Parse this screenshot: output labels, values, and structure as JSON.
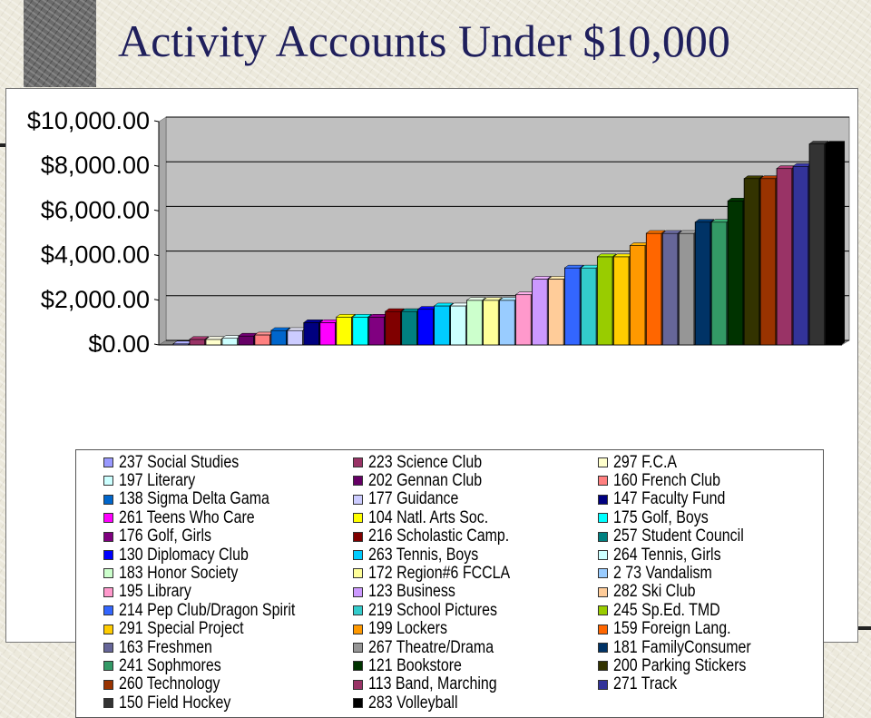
{
  "slide": {
    "title": "Activity Accounts Under $10,000"
  },
  "chart_data": {
    "type": "bar",
    "title": "",
    "xlabel": "",
    "ylabel": "",
    "ylim": [
      0,
      10000
    ],
    "yticks": [
      "$0.00",
      "$2,000.00",
      "$4,000.00",
      "$6,000.00",
      "$8,000.00",
      "$10,000.00"
    ],
    "ytick_values": [
      0,
      2000,
      4000,
      6000,
      8000,
      10000
    ],
    "grid": true,
    "legend_position": "bottom",
    "plot_background": "#c0c0c0",
    "categories": [
      "237 Social Studies",
      "223 Science Club",
      "297 F.C.A",
      "197 Literary",
      "202 Gennan Club",
      "160 French Club",
      "138 Sigma Delta Gama",
      "177 Guidance",
      "147 Faculty Fund",
      "261 Teens Who Care",
      "104 Natl. Arts Soc.",
      "175 Golf, Boys",
      "176 Golf, Girls",
      "216 Scholastic Camp.",
      "257 Student Council",
      "130 Diplomacy Club",
      "263 Tennis, Boys",
      "264 Tennis, Girls",
      "183 Honor Society",
      "172 Region#6 FCCLA",
      "2 73 Vandalism",
      "195 Library",
      "123 Business",
      "282 Ski Club",
      "214 Pep Club/Dragon Spirit",
      "219 School Pictures",
      "245 Sp.Ed. TMD",
      "291 Special Project",
      "199 Lockers",
      "159 Foreign Lang.",
      "163 Freshmen",
      "267 Theatre/Drama",
      "181 FamilyConsumer",
      "241 Sophmores",
      "121 Bookstore",
      "200 Parking Stickers",
      "260 Technology",
      "113 Band, Marching",
      "271 Track",
      "150 Field Hockey",
      "283 Volleyball"
    ],
    "values": [
      50,
      250,
      250,
      300,
      400,
      450,
      650,
      650,
      1000,
      1000,
      1250,
      1250,
      1250,
      1500,
      1500,
      1600,
      1750,
      1750,
      2000,
      2000,
      2000,
      2250,
      2950,
      2950,
      3450,
      3450,
      3950,
      3950,
      4450,
      5000,
      5000,
      5000,
      5500,
      5500,
      6450,
      7450,
      7450,
      7900,
      8000,
      9000,
      9000
    ],
    "colors": [
      "#9999ff",
      "#993366",
      "#ffffcc",
      "#ccffff",
      "#660066",
      "#ff8080",
      "#0066cc",
      "#ccccff",
      "#000080",
      "#ff00ff",
      "#ffff00",
      "#00ffff",
      "#800080",
      "#800000",
      "#008080",
      "#0000ff",
      "#00ccff",
      "#ccffff",
      "#ccffcc",
      "#ffff99",
      "#99ccff",
      "#ff99cc",
      "#cc99ff",
      "#ffcc99",
      "#3366ff",
      "#33cccc",
      "#99cc00",
      "#ffcc00",
      "#ff9900",
      "#ff6600",
      "#666699",
      "#969696",
      "#003366",
      "#339966",
      "#003300",
      "#333300",
      "#993300",
      "#993366",
      "#333399",
      "#333333",
      "#000000"
    ]
  }
}
